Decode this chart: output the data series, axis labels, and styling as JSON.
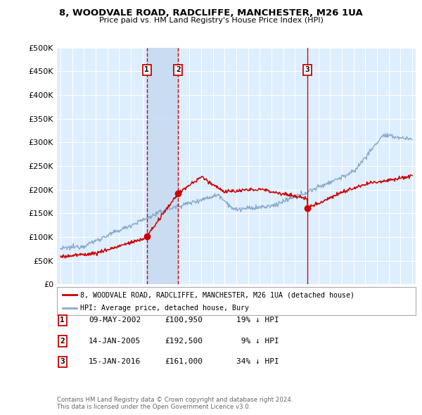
{
  "title": "8, WOODVALE ROAD, RADCLIFFE, MANCHESTER, M26 1UA",
  "subtitle": "Price paid vs. HM Land Registry's House Price Index (HPI)",
  "legend_label_red": "8, WOODVALE ROAD, RADCLIFFE, MANCHESTER, M26 1UA (detached house)",
  "legend_label_blue": "HPI: Average price, detached house, Bury",
  "footer": "Contains HM Land Registry data © Crown copyright and database right 2024.\nThis data is licensed under the Open Government Licence v3.0.",
  "sales": [
    {
      "num": 1,
      "date": "09-MAY-2002",
      "price": 100950,
      "year": 2002.36,
      "label": "19% ↓ HPI",
      "vline": "dashed"
    },
    {
      "num": 2,
      "date": "14-JAN-2005",
      "price": 192500,
      "year": 2005.04,
      "label": "9% ↓ HPI",
      "vline": "dashed"
    },
    {
      "num": 3,
      "date": "15-JAN-2016",
      "price": 161000,
      "year": 2016.04,
      "label": "34% ↓ HPI",
      "vline": "solid"
    }
  ],
  "ylim": [
    0,
    500000
  ],
  "xlim_start": 1994.7,
  "xlim_end": 2025.3,
  "color_red": "#cc0000",
  "color_blue": "#88aacc",
  "color_dashed": "#cc0000",
  "bg_color": "#ddeeff",
  "grid_color": "#ffffff",
  "shade_color": "#c5d8ee",
  "table_rows": [
    [
      "1",
      "09-MAY-2002",
      "£100,950",
      "19% ↓ HPI"
    ],
    [
      "2",
      "14-JAN-2005",
      "£192,500",
      " 9% ↓ HPI"
    ],
    [
      "3",
      "15-JAN-2016",
      "£161,000",
      "34% ↓ HPI"
    ]
  ]
}
